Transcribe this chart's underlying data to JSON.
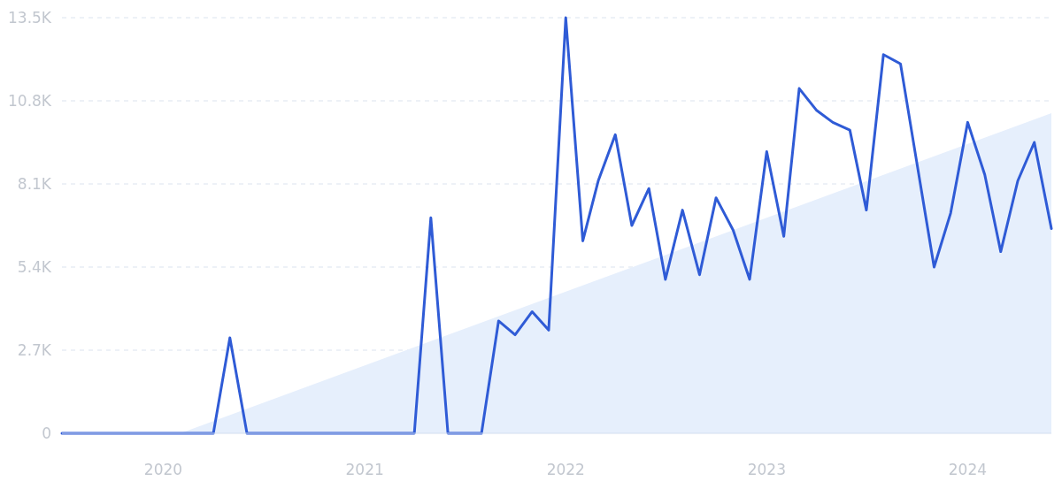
{
  "chart_data": {
    "type": "line",
    "x": [
      "2019-07",
      "2019-08",
      "2019-09",
      "2019-10",
      "2019-11",
      "2019-12",
      "2020-01",
      "2020-02",
      "2020-03",
      "2020-04",
      "2020-05",
      "2020-06",
      "2020-07",
      "2020-08",
      "2020-09",
      "2020-10",
      "2020-11",
      "2020-12",
      "2021-01",
      "2021-02",
      "2021-03",
      "2021-04",
      "2021-05",
      "2021-06",
      "2021-07",
      "2021-08",
      "2021-09",
      "2021-10",
      "2021-11",
      "2021-12",
      "2022-01",
      "2022-02",
      "2022-03",
      "2022-04",
      "2022-05",
      "2022-06",
      "2022-07",
      "2022-08",
      "2022-09",
      "2022-10",
      "2022-11",
      "2022-12",
      "2023-01",
      "2023-02",
      "2023-03",
      "2023-04",
      "2023-05",
      "2023-06",
      "2023-07",
      "2023-08",
      "2023-09",
      "2023-10",
      "2023-11",
      "2023-12",
      "2024-01",
      "2024-02",
      "2024-03",
      "2024-04",
      "2024-05",
      "2024-06"
    ],
    "series": [
      {
        "type": "area",
        "color": "#e6effc",
        "x": [
          "2020-02",
          "2024-06"
        ],
        "values": [
          0,
          10400
        ]
      },
      {
        "color": "#2f5bd6",
        "values": [
          0,
          0,
          0,
          0,
          0,
          0,
          0,
          0,
          0,
          0,
          3100,
          0,
          0,
          0,
          0,
          0,
          0,
          0,
          0,
          0,
          0,
          0,
          7000,
          0,
          0,
          0,
          3650,
          3200,
          3950,
          3350,
          13500,
          6250,
          8200,
          9700,
          6750,
          7950,
          5000,
          7250,
          5150,
          7650,
          6600,
          5000,
          9150,
          6400,
          11200,
          10500,
          10100,
          9850,
          7250,
          12300,
          12000,
          8750,
          5400,
          7150,
          10100,
          8400,
          5900,
          8200,
          9450,
          6650
        ]
      }
    ],
    "xlim": [
      "2019-07",
      "2024-06"
    ],
    "xticks": [
      {
        "value": "2020-01",
        "label": "2020"
      },
      {
        "value": "2021-01",
        "label": "2021"
      },
      {
        "value": "2022-01",
        "label": "2022"
      },
      {
        "value": "2023-01",
        "label": "2023"
      },
      {
        "value": "2024-01",
        "label": "2024"
      }
    ],
    "ylim": [
      0,
      13500
    ],
    "yticks": [
      0,
      {
        "value": 2700,
        "label": "2.7K"
      },
      {
        "value": 5400,
        "label": "5.4K"
      },
      {
        "value": 8100,
        "label": "8.1K"
      },
      {
        "value": 10800,
        "label": "10.8K"
      },
      {
        "value": 13500,
        "label": "13.5K"
      }
    ],
    "grid": "y",
    "line_style": "solid",
    "marker": "none"
  }
}
